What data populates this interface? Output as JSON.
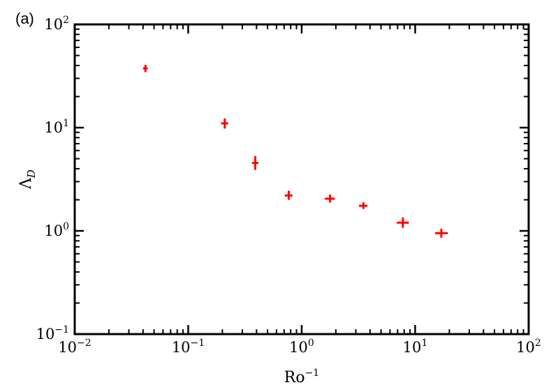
{
  "panel_label": "(a)",
  "chart_data": {
    "type": "scatter",
    "xscale": "log",
    "yscale": "log",
    "xlim": [
      0.01,
      100
    ],
    "ylim": [
      0.1,
      100
    ],
    "xlabel": {
      "base": "Ro",
      "sup": "−1"
    },
    "ylabel": {
      "base": "Λ",
      "sub": "D"
    },
    "xticks": [
      {
        "value": 0.01,
        "exp": "−2"
      },
      {
        "value": 0.1,
        "exp": "−1"
      },
      {
        "value": 1,
        "exp": "0"
      },
      {
        "value": 10,
        "exp": "1"
      },
      {
        "value": 100,
        "exp": "2"
      }
    ],
    "yticks": [
      {
        "value": 0.1,
        "exp": "−1"
      },
      {
        "value": 1,
        "exp": "0"
      },
      {
        "value": 10,
        "exp": "1"
      },
      {
        "value": 100,
        "exp": "2"
      }
    ],
    "tick_base": "10",
    "marker_color": "#ff0000",
    "grid": false,
    "points": [
      {
        "x": 0.042,
        "y": 37.5,
        "y_lo": 34.5,
        "y_hi": 40.5,
        "x_lo": 0.04,
        "x_hi": 0.044
      },
      {
        "x": 0.21,
        "y": 11.0,
        "y_lo": 9.8,
        "y_hi": 12.3,
        "x_lo": 0.195,
        "x_hi": 0.225
      },
      {
        "x": 0.39,
        "y": 4.55,
        "y_lo": 3.9,
        "y_hi": 5.3,
        "x_lo": 0.365,
        "x_hi": 0.415
      },
      {
        "x": 0.77,
        "y": 2.2,
        "y_lo": 2.0,
        "y_hi": 2.45,
        "x_lo": 0.71,
        "x_hi": 0.83
      },
      {
        "x": 1.78,
        "y": 2.05,
        "y_lo": 1.88,
        "y_hi": 2.25,
        "x_lo": 1.6,
        "x_hi": 1.96
      },
      {
        "x": 3.5,
        "y": 1.75,
        "y_lo": 1.63,
        "y_hi": 1.89,
        "x_lo": 3.2,
        "x_hi": 3.8
      },
      {
        "x": 7.8,
        "y": 1.2,
        "y_lo": 1.07,
        "y_hi": 1.35,
        "x_lo": 6.9,
        "x_hi": 8.8
      },
      {
        "x": 17.0,
        "y": 0.95,
        "y_lo": 0.86,
        "y_hi": 1.05,
        "x_lo": 15.0,
        "x_hi": 19.4
      }
    ]
  }
}
